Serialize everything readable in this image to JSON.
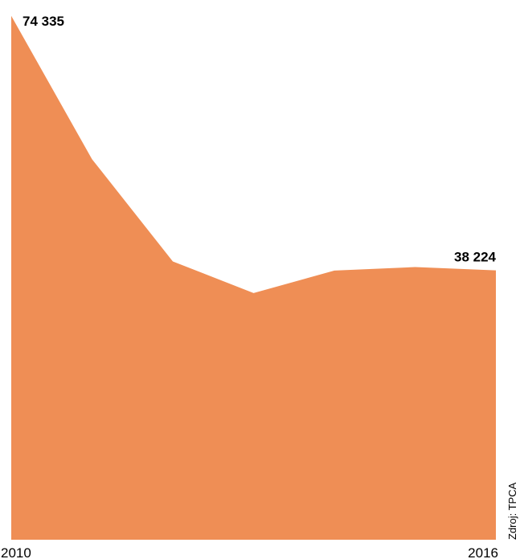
{
  "chart_data": {
    "type": "area",
    "x": [
      2010,
      2011,
      2012,
      2013,
      2014,
      2015,
      2016
    ],
    "values": [
      74335,
      54000,
      39500,
      35000,
      38200,
      38700,
      38224
    ],
    "ylim": [
      0,
      75000
    ],
    "color": "#EF8E55",
    "data_labels": [
      {
        "index": 0,
        "text": "74 335"
      },
      {
        "index": 6,
        "text": "38 224"
      }
    ],
    "x_tick_labels": [
      {
        "index": 0,
        "text": "2010"
      },
      {
        "index": 6,
        "text": "2016"
      }
    ],
    "source": "Zdroj: TPCA",
    "grid": false,
    "legend": "none"
  }
}
